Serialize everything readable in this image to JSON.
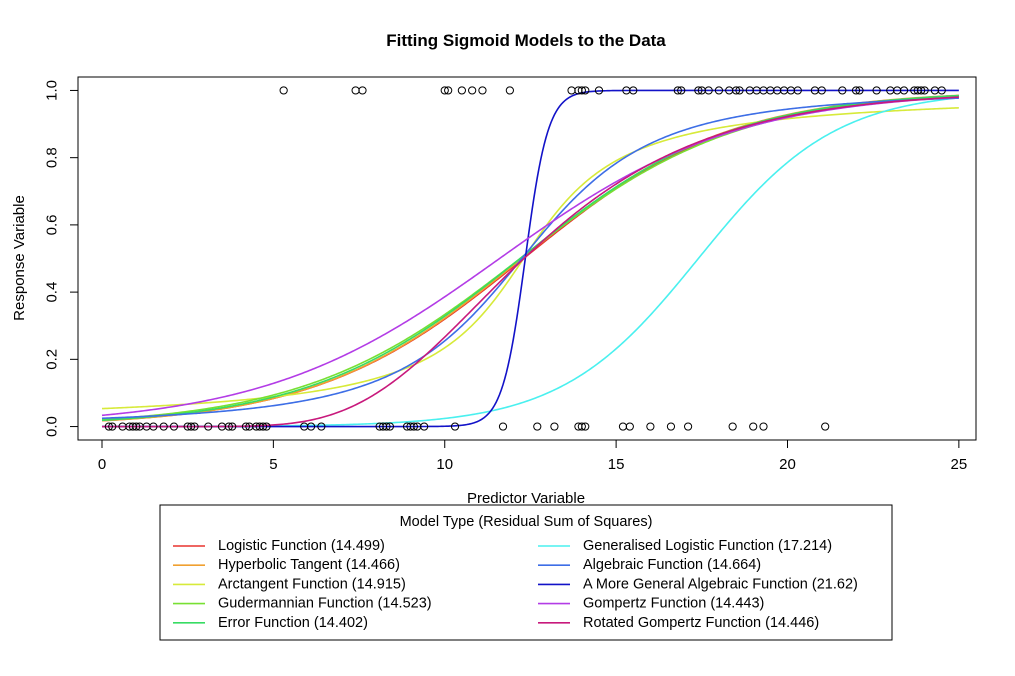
{
  "chart_data": {
    "type": "scatter",
    "title": "Fitting Sigmoid Models to the Data",
    "xlabel": "Predictor Variable",
    "ylabel": "Response Variable",
    "xlim": [
      -0.7,
      25.5
    ],
    "ylim": [
      -0.04,
      1.04
    ],
    "x_ticks": [
      0,
      5,
      10,
      15,
      20,
      25
    ],
    "x_tick_labels": [
      "0",
      "5",
      "10",
      "15",
      "20",
      "25"
    ],
    "y_ticks": [
      0.0,
      0.2,
      0.4,
      0.6,
      0.8,
      1.0
    ],
    "y_tick_labels": [
      "0.0",
      "0.2",
      "0.4",
      "0.6",
      "0.8",
      "1.0"
    ],
    "grid": false,
    "legend_title": "Model Type (Residual Sum of Squares)",
    "legend_position": "bottom",
    "points": {
      "y1_x": [
        5.3,
        7.4,
        7.6,
        10.0,
        10.1,
        10.5,
        10.8,
        11.1,
        11.9,
        13.7,
        13.9,
        14.0,
        14.1,
        14.5,
        15.3,
        15.5,
        16.8,
        16.9,
        17.4,
        17.5,
        17.7,
        18.0,
        18.3,
        18.5,
        18.6,
        18.9,
        19.1,
        19.3,
        19.5,
        19.7,
        19.9,
        20.1,
        20.3,
        20.8,
        21.0,
        21.6,
        22.0,
        22.1,
        22.6,
        23.0,
        23.2,
        23.4,
        23.7,
        23.8,
        23.9,
        24.0,
        24.3,
        24.5
      ],
      "y0_x": [
        0.2,
        0.3,
        0.6,
        0.8,
        0.9,
        1.0,
        1.1,
        1.3,
        1.5,
        1.8,
        2.1,
        2.5,
        2.6,
        2.7,
        3.1,
        3.5,
        3.7,
        3.8,
        4.2,
        4.3,
        4.5,
        4.6,
        4.7,
        4.8,
        5.9,
        6.1,
        6.4,
        8.1,
        8.2,
        8.3,
        8.4,
        8.9,
        9.0,
        9.1,
        9.2,
        9.4,
        10.3,
        11.7,
        12.7,
        13.2,
        13.9,
        14.0,
        14.1,
        15.2,
        15.4,
        16.0,
        16.6,
        17.1,
        18.4,
        19.0,
        19.3,
        21.1
      ]
    },
    "series": [
      {
        "name": "Logistic Function (14.499)",
        "color": "#e8332e",
        "model": "logistic",
        "params": {
          "a": 12.3,
          "b": 0.328
        }
      },
      {
        "name": "Hyperbolic Tangent (14.466)",
        "color": "#f0a030",
        "model": "logistic",
        "params": {
          "a": 12.25,
          "b": 0.33
        }
      },
      {
        "name": "Arctangent Function (14.915)",
        "color": "#d7ea3a",
        "model": "arctan",
        "params": {
          "a": 12.3,
          "b": 0.48
        }
      },
      {
        "name": "Gudermannian Function (14.523)",
        "color": "#78e033",
        "model": "logistic",
        "params": {
          "a": 12.2,
          "b": 0.315
        }
      },
      {
        "name": "Error Function (14.402)",
        "color": "#37dc63",
        "model": "logistic",
        "params": {
          "a": 12.2,
          "b": 0.325
        }
      },
      {
        "name": "Generalised Logistic Function (17.214)",
        "color": "#4af0ef",
        "model": "logistic",
        "params": {
          "a": 17.4,
          "b": 0.5
        }
      },
      {
        "name": "Algebraic Function (14.664)",
        "color": "#3d6ee6",
        "model": "algebraic",
        "params": {
          "a": 12.25,
          "b": 0.25
        }
      },
      {
        "name": "A More General Algebraic Function (21.62)",
        "color": "#1212c8",
        "model": "logistic",
        "params": {
          "a": 12.35,
          "b": 3.0
        }
      },
      {
        "name": "Gompertz Function (14.443)",
        "color": "#b33ce6",
        "model": "logistic",
        "params": {
          "a": 11.6,
          "b": 0.29
        }
      },
      {
        "name": "Rotated Gompertz Function (14.446)",
        "color": "#c8197c",
        "model": "gompertz",
        "params": {
          "a": 0.28,
          "b": 11.0
        }
      }
    ]
  }
}
